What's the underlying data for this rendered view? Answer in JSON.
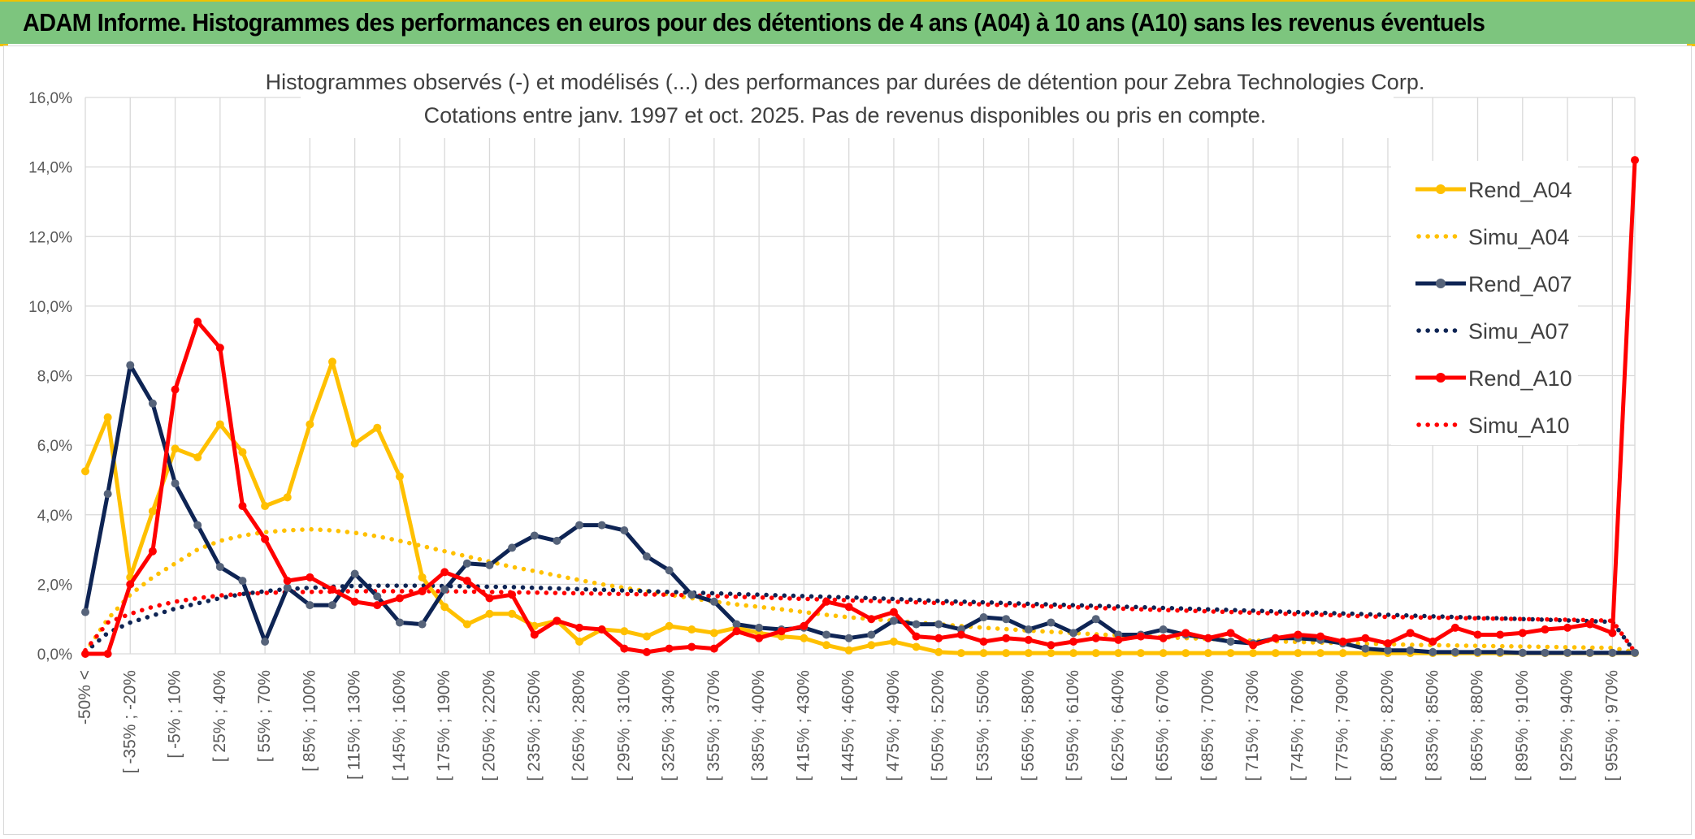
{
  "banner": {
    "title": "ADAM Informe. Histogrammes des performances en euros pour des détentions de 4 ans (A04) à 10 ans (A10) sans les revenus éventuels"
  },
  "colors": {
    "banner_bg": "#7dc57e",
    "accent": "#f0c200",
    "grid": "#d9d9d9"
  },
  "chart_data": {
    "type": "line",
    "title": "Histogrammes observés (-) et modélisés (...) des performances par durées de détention pour Zebra Technologies Corp.",
    "subtitle": "Cotations entre janv. 1997 et oct. 2025. Pas de revenus disponibles ou pris en compte.",
    "xlabel": "",
    "ylabel": "",
    "ylim": [
      0,
      16
    ],
    "yticks": [
      "0,0%",
      "2,0%",
      "4,0%",
      "6,0%",
      "8,0%",
      "10,0%",
      "12,0%",
      "14,0%",
      "16,0%"
    ],
    "xtick_labels": [
      "-50% <",
      "[ -35% ; -20%",
      "[ -5% ; 10%",
      "[ 25% ; 40%",
      "[ 55% ; 70%",
      "[ 85% ; 100%",
      "[ 115% ; 130%",
      "[ 145% ; 160%",
      "[ 175% ; 190%",
      "[ 205% ; 220%",
      "[ 235% ; 250%",
      "[ 265% ; 280%",
      "[ 295% ; 310%",
      "[ 325% ; 340%",
      "[ 355% ; 370%",
      "[ 385% ; 400%",
      "[ 415% ; 430%",
      "[ 445% ; 460%",
      "[ 475% ; 490%",
      "[ 505% ; 520%",
      "[ 535% ; 550%",
      "[ 565% ; 580%",
      "[ 595% ; 610%",
      "[ 625% ; 640%",
      "[ 655% ; 670%",
      "[ 685% ; 700%",
      "[ 715% ; 730%",
      "[ 745% ; 760%",
      "[ 775% ; 790%",
      "[ 805% ; 820%",
      "[ 835% ; 850%",
      "[ 865% ; 880%",
      "[ 895% ; 910%",
      "[ 925% ; 940%",
      "[ 955% ; 970%"
    ],
    "n_points": 70,
    "grid": true,
    "legend_position": "right",
    "series": [
      {
        "name": "Rend_A04",
        "style": "solid",
        "color": "#ffc000",
        "values": [
          5.25,
          6.8,
          2.2,
          4.1,
          5.9,
          5.65,
          6.6,
          5.8,
          4.25,
          4.5,
          6.6,
          8.4,
          6.05,
          6.5,
          5.1,
          2.2,
          1.35,
          0.85,
          1.15,
          1.15,
          0.8,
          0.95,
          0.35,
          0.7,
          0.65,
          0.5,
          0.8,
          0.7,
          0.6,
          0.75,
          0.6,
          0.5,
          0.45,
          0.25,
          0.1,
          0.25,
          0.35,
          0.2,
          0.05,
          0.02,
          0.02,
          0.02,
          0.02,
          0.02,
          0.02,
          0.02,
          0.02,
          0.02,
          0.02,
          0.02,
          0.02,
          0.02,
          0.02,
          0.02,
          0.02,
          0.02,
          0.02,
          0.02,
          0.02,
          0.02,
          0.02,
          0.02,
          0.02,
          0.02,
          0.02,
          0.02,
          0.02,
          0.02,
          0.02,
          0.02
        ]
      },
      {
        "name": "Simu_A04",
        "style": "dotted",
        "color": "#ffc000",
        "values": [
          0.05,
          1.0,
          1.7,
          2.2,
          2.6,
          3.0,
          3.25,
          3.4,
          3.5,
          3.55,
          3.58,
          3.55,
          3.48,
          3.38,
          3.25,
          3.1,
          2.95,
          2.8,
          2.65,
          2.5,
          2.38,
          2.25,
          2.12,
          2.0,
          1.9,
          1.8,
          1.7,
          1.6,
          1.5,
          1.42,
          1.35,
          1.28,
          1.2,
          1.12,
          1.05,
          1.0,
          0.95,
          0.9,
          0.85,
          0.8,
          0.75,
          0.71,
          0.67,
          0.63,
          0.6,
          0.56,
          0.53,
          0.5,
          0.48,
          0.45,
          0.43,
          0.4,
          0.38,
          0.36,
          0.34,
          0.32,
          0.31,
          0.29,
          0.28,
          0.26,
          0.25,
          0.24,
          0.23,
          0.22,
          0.21,
          0.2,
          0.19,
          0.18,
          0.17,
          0.05
        ]
      },
      {
        "name": "Rend_A07",
        "style": "solid",
        "color": "#0e2454",
        "values": [
          1.2,
          4.6,
          8.3,
          7.2,
          4.9,
          3.7,
          2.5,
          2.1,
          0.35,
          1.9,
          1.4,
          1.4,
          2.3,
          1.65,
          0.9,
          0.85,
          1.85,
          2.6,
          2.55,
          3.05,
          3.4,
          3.25,
          3.7,
          3.7,
          3.55,
          2.8,
          2.4,
          1.7,
          1.5,
          0.85,
          0.75,
          0.7,
          0.75,
          0.55,
          0.45,
          0.55,
          0.95,
          0.85,
          0.85,
          0.7,
          1.05,
          1.0,
          0.7,
          0.9,
          0.6,
          1.0,
          0.55,
          0.55,
          0.7,
          0.55,
          0.45,
          0.35,
          0.3,
          0.45,
          0.45,
          0.4,
          0.3,
          0.15,
          0.1,
          0.1,
          0.05,
          0.05,
          0.05,
          0.05,
          0.03,
          0.03,
          0.03,
          0.03,
          0.03,
          0.03
        ]
      },
      {
        "name": "Simu_A07",
        "style": "dotted",
        "color": "#0e2454",
        "values": [
          0.05,
          0.6,
          0.9,
          1.1,
          1.3,
          1.45,
          1.6,
          1.72,
          1.8,
          1.86,
          1.9,
          1.93,
          1.95,
          1.96,
          1.96,
          1.96,
          1.95,
          1.94,
          1.93,
          1.92,
          1.9,
          1.88,
          1.86,
          1.84,
          1.82,
          1.8,
          1.78,
          1.76,
          1.74,
          1.72,
          1.7,
          1.68,
          1.66,
          1.64,
          1.62,
          1.6,
          1.58,
          1.55,
          1.52,
          1.5,
          1.48,
          1.46,
          1.44,
          1.42,
          1.4,
          1.38,
          1.36,
          1.34,
          1.32,
          1.3,
          1.28,
          1.26,
          1.24,
          1.22,
          1.2,
          1.18,
          1.16,
          1.14,
          1.12,
          1.1,
          1.08,
          1.06,
          1.04,
          1.02,
          1.0,
          0.98,
          0.96,
          0.94,
          0.92,
          0.05
        ]
      },
      {
        "name": "Rend_A10",
        "style": "solid",
        "color": "#ff0000",
        "values": [
          0.0,
          0.0,
          2.0,
          2.95,
          7.6,
          9.55,
          8.8,
          4.25,
          3.3,
          2.1,
          2.2,
          1.85,
          1.5,
          1.4,
          1.6,
          1.8,
          2.35,
          2.1,
          1.6,
          1.7,
          0.55,
          0.95,
          0.75,
          0.7,
          0.15,
          0.05,
          0.15,
          0.2,
          0.15,
          0.65,
          0.45,
          0.65,
          0.8,
          1.5,
          1.35,
          1.0,
          1.2,
          0.5,
          0.45,
          0.55,
          0.35,
          0.45,
          0.4,
          0.25,
          0.35,
          0.45,
          0.4,
          0.5,
          0.45,
          0.6,
          0.45,
          0.6,
          0.25,
          0.45,
          0.55,
          0.5,
          0.35,
          0.45,
          0.3,
          0.6,
          0.35,
          0.75,
          0.55,
          0.55,
          0.6,
          0.7,
          0.75,
          0.85,
          0.6,
          14.2
        ]
      },
      {
        "name": "Simu_A10",
        "style": "dotted",
        "color": "#ff0000",
        "values": [
          0.1,
          0.9,
          1.15,
          1.35,
          1.5,
          1.6,
          1.68,
          1.72,
          1.75,
          1.77,
          1.78,
          1.79,
          1.8,
          1.8,
          1.8,
          1.8,
          1.8,
          1.79,
          1.78,
          1.77,
          1.76,
          1.75,
          1.74,
          1.73,
          1.72,
          1.71,
          1.7,
          1.68,
          1.66,
          1.64,
          1.62,
          1.6,
          1.58,
          1.56,
          1.54,
          1.52,
          1.5,
          1.48,
          1.46,
          1.44,
          1.42,
          1.4,
          1.38,
          1.36,
          1.34,
          1.32,
          1.3,
          1.28,
          1.26,
          1.24,
          1.22,
          1.2,
          1.18,
          1.16,
          1.14,
          1.12,
          1.1,
          1.08,
          1.06,
          1.05,
          1.04,
          1.03,
          1.02,
          1.01,
          1.0,
          0.99,
          0.98,
          0.97,
          0.95,
          0.05
        ]
      }
    ]
  }
}
